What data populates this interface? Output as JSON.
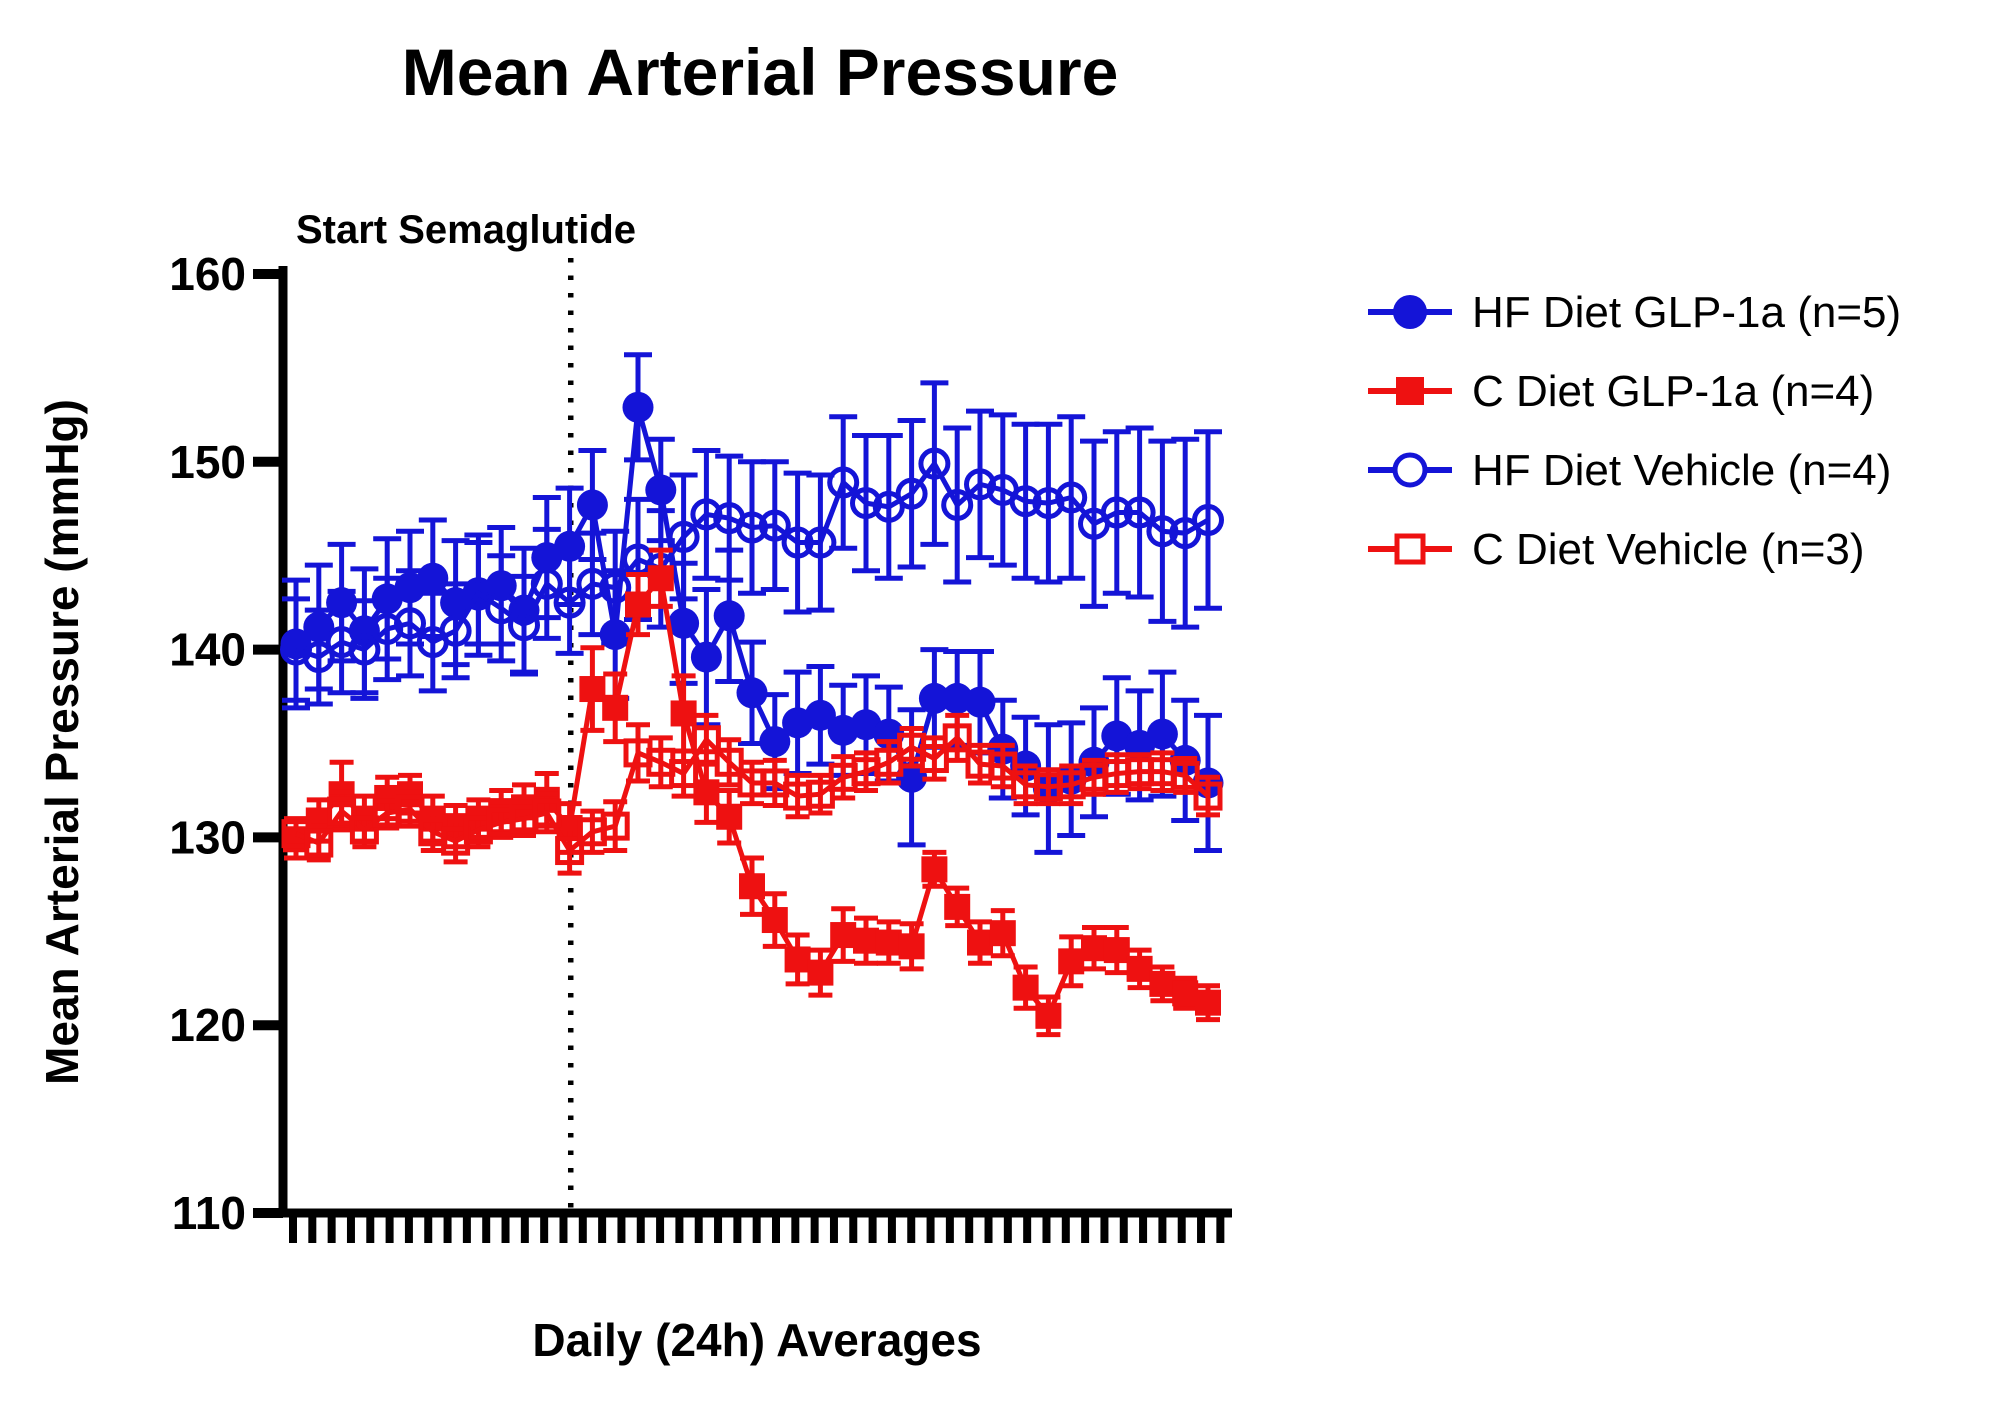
{
  "title": "Mean Arterial Pressure",
  "annotation": {
    "label": "Start Semaglutide"
  },
  "axes": {
    "y_label": "Mean Arterial Pressure (mmHg)",
    "x_label": "Daily (24h) Averages",
    "y_ticks": [
      160,
      150,
      140,
      130,
      120,
      110
    ],
    "y_min": 110,
    "y_max": 160,
    "x_tick_count": 49
  },
  "colors": {
    "blue": "#1414d7",
    "red": "#ee1111",
    "axis": "#000000",
    "background": "#ffffff"
  },
  "chart_data": {
    "type": "line",
    "title": "Mean Arterial Pressure",
    "xlabel": "Daily (24h) Averages",
    "ylabel": "Mean Arterial Pressure (mmHg)",
    "ylim": [
      110,
      160
    ],
    "grid": false,
    "legend_position": "right",
    "x_unit": "day",
    "x": [
      1,
      2,
      3,
      4,
      5,
      6,
      7,
      8,
      9,
      10,
      11,
      12,
      13,
      14,
      15,
      16,
      17,
      18,
      19,
      20,
      21,
      22,
      23,
      24,
      25,
      26,
      27,
      28,
      29,
      30,
      31,
      32,
      33,
      34,
      35,
      36,
      37,
      38,
      39,
      40,
      41
    ],
    "annotations": [
      {
        "type": "vline",
        "x": 13.05,
        "style": "dotted",
        "label": "Start Semaglutide"
      }
    ],
    "series": [
      {
        "name": "HF Diet GLP-1a (n=5)",
        "key": "hf-diet-glp-1a",
        "marker": "circle-filled",
        "color": "#1414d7",
        "values": [
          140.3,
          141.2,
          142.5,
          141.0,
          142.7,
          143.3,
          143.8,
          142.5,
          142.9,
          143.4,
          142.1,
          144.9,
          145.5,
          147.7,
          140.8,
          152.9,
          148.5,
          141.4,
          139.6,
          141.8,
          137.7,
          135.1,
          136.1,
          136.5,
          135.7,
          136.0,
          135.5,
          133.2,
          137.4,
          137.4,
          137.2,
          134.7,
          133.8,
          132.6,
          133.1,
          134.0,
          135.4,
          134.9,
          135.5,
          134.1,
          132.9
        ],
        "sem": [
          3.4,
          3.3,
          3.1,
          3.3,
          3.2,
          3.0,
          3.1,
          3.3,
          3.2,
          3.1,
          3.3,
          3.2,
          3.1,
          2.9,
          3.4,
          2.8,
          2.7,
          3.2,
          3.6,
          3.5,
          2.7,
          2.5,
          2.7,
          2.6,
          2.4,
          2.6,
          2.5,
          3.6,
          2.6,
          2.5,
          2.7,
          2.6,
          2.6,
          3.4,
          3.0,
          2.9,
          3.1,
          2.9,
          3.3,
          3.2,
          3.6
        ]
      },
      {
        "name": "C Diet GLP-1a (n=4)",
        "key": "c-diet-glp-1a",
        "marker": "square-filled",
        "color": "#ee1111",
        "values": [
          129.9,
          130.9,
          132.3,
          131.0,
          132.1,
          132.3,
          131.0,
          130.6,
          131.0,
          131.4,
          131.6,
          132.0,
          130.5,
          137.9,
          136.9,
          142.4,
          143.8,
          136.6,
          132.4,
          131.1,
          127.4,
          125.6,
          123.5,
          122.8,
          124.8,
          124.5,
          124.4,
          124.2,
          128.3,
          126.3,
          124.4,
          124.9,
          122.0,
          120.5,
          123.4,
          124.1,
          124.0,
          123.0,
          122.2,
          121.7,
          121.2
        ],
        "sem": [
          1.0,
          1.1,
          1.7,
          1.2,
          1.1,
          1.0,
          1.2,
          1.1,
          1.0,
          1.1,
          1.2,
          1.4,
          1.3,
          2.2,
          1.8,
          1.6,
          1.5,
          2.0,
          1.6,
          1.4,
          1.5,
          1.4,
          1.3,
          1.2,
          1.4,
          1.2,
          1.1,
          1.2,
          0.9,
          1.0,
          1.1,
          1.2,
          1.1,
          1.0,
          1.3,
          1.1,
          1.2,
          1.0,
          0.9,
          0.8,
          0.9
        ]
      },
      {
        "name": "HF Diet Vehicle (n=4)",
        "key": "hf-diet-vehicle",
        "marker": "circle-open",
        "color": "#1414d7",
        "values": [
          140.0,
          139.6,
          140.4,
          140.0,
          141.1,
          141.4,
          140.4,
          141.0,
          143.0,
          142.2,
          141.3,
          143.5,
          142.5,
          143.5,
          143.3,
          144.8,
          144.3,
          146.0,
          147.2,
          147.0,
          146.5,
          146.6,
          145.7,
          145.7,
          148.9,
          147.8,
          147.6,
          148.3,
          149.9,
          147.7,
          148.8,
          148.5,
          147.9,
          147.8,
          148.1,
          146.7,
          147.3,
          147.3,
          146.3,
          146.2,
          146.9
        ],
        "sem": [
          2.7,
          2.5,
          2.7,
          2.6,
          2.7,
          2.8,
          2.6,
          2.5,
          2.7,
          2.8,
          2.6,
          2.9,
          2.7,
          2.7,
          3.0,
          3.2,
          3.1,
          3.3,
          3.4,
          3.3,
          3.5,
          3.4,
          3.7,
          3.6,
          3.5,
          3.6,
          3.8,
          3.9,
          4.3,
          4.1,
          3.9,
          4.0,
          4.1,
          4.2,
          4.3,
          4.4,
          4.3,
          4.5,
          4.8,
          5.0,
          4.7
        ]
      },
      {
        "name": "C Diet Vehicle (n=3)",
        "key": "c-diet-vehicle",
        "marker": "square-open",
        "color": "#ee1111",
        "values": [
          130.2,
          129.7,
          131.4,
          130.4,
          131.3,
          131.5,
          130.3,
          129.8,
          130.4,
          130.8,
          131.0,
          131.3,
          129.3,
          130.3,
          130.6,
          134.5,
          134.0,
          133.4,
          135.2,
          134.0,
          132.9,
          132.9,
          132.2,
          132.3,
          133.2,
          133.5,
          134.0,
          134.8,
          134.2,
          135.3,
          133.9,
          133.8,
          132.8,
          132.7,
          132.8,
          133.2,
          133.4,
          133.5,
          133.5,
          133.3,
          132.2
        ],
        "sem": [
          0.8,
          0.9,
          1.0,
          0.9,
          0.8,
          0.9,
          1.0,
          1.1,
          0.9,
          0.8,
          0.9,
          1.0,
          1.2,
          1.1,
          1.3,
          1.5,
          1.3,
          1.2,
          1.3,
          1.2,
          1.1,
          1.2,
          1.1,
          1.0,
          1.1,
          1.0,
          1.1,
          1.0,
          1.1,
          1.2,
          1.0,
          1.1,
          1.0,
          0.9,
          1.0,
          0.9,
          1.0,
          0.9,
          1.0,
          0.9,
          1.0
        ]
      }
    ]
  }
}
